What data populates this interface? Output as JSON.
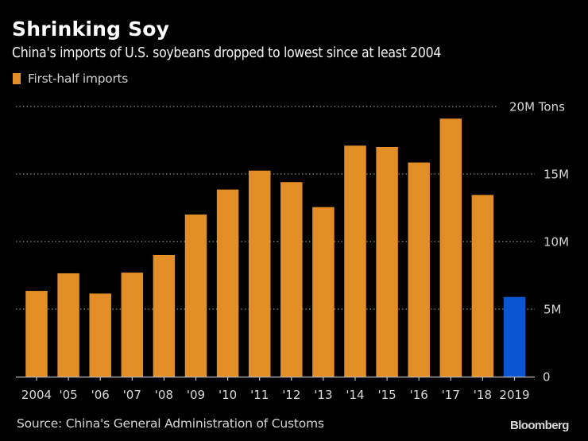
{
  "header": {
    "title": "Shrinking Soy",
    "subtitle": "China's imports of U.S. soybeans dropped to lowest since at least 2004"
  },
  "legend": {
    "items": [
      {
        "label": "First-half imports",
        "color": "#E38D26"
      }
    ]
  },
  "footer": {
    "source": "Source: China's General Administration of Customs",
    "brand": "Bloomberg"
  },
  "chart_data": {
    "type": "bar",
    "title": "Shrinking Soy",
    "subtitle": "China's imports of U.S. soybeans dropped to lowest since at least 2004",
    "xlabel": "",
    "ylabel": "",
    "categories": [
      "2004",
      "'05",
      "'06",
      "'07",
      "'08",
      "'09",
      "'10",
      "'11",
      "'12",
      "'13",
      "'14",
      "'15",
      "'16",
      "'17",
      "'18",
      "2019"
    ],
    "series": [
      {
        "name": "First-half imports",
        "unit": "million tons",
        "values": [
          6.35,
          7.65,
          6.15,
          7.7,
          9.0,
          12.0,
          13.85,
          15.25,
          14.4,
          12.55,
          17.1,
          17.0,
          15.85,
          19.1,
          13.45,
          5.9
        ]
      }
    ],
    "bar_colors": [
      "#E38D26",
      "#E38D26",
      "#E38D26",
      "#E38D26",
      "#E38D26",
      "#E38D26",
      "#E38D26",
      "#E38D26",
      "#E38D26",
      "#E38D26",
      "#E38D26",
      "#E38D26",
      "#E38D26",
      "#E38D26",
      "#E38D26",
      "#0A55D0"
    ],
    "highlight_color": "#0A55D0",
    "ylim": [
      0,
      20
    ],
    "yticks": [
      0,
      5,
      10,
      15,
      20
    ],
    "ytick_labels": [
      "0",
      "5M",
      "10M",
      "15M",
      "20M Tons"
    ],
    "y_axis_side": "right",
    "grid": true,
    "grid_style": "dotted",
    "legend_position": "top-left",
    "source": "Source: China's General Administration of Customs"
  }
}
